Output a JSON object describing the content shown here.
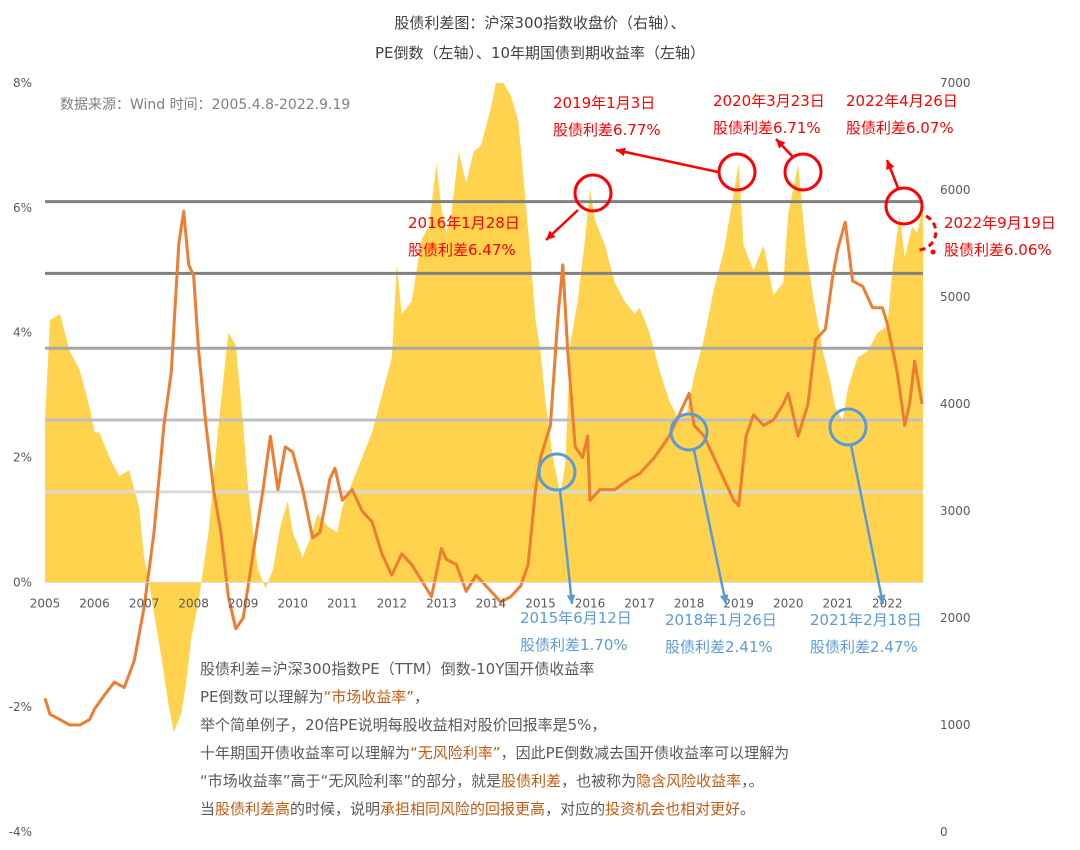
{
  "chart_data": {
    "type": "area+line",
    "title_line1": "股债利差图：沪深300指数收盘价（右轴）、",
    "title_line2": "PE倒数（左轴）、10年期国债到期收益率（左轴）",
    "source_note": "数据来源：Wind 时间：2005.4.8-2022.9.19",
    "y_left": {
      "ticks": [
        "8%",
        "6%",
        "4%",
        "2%",
        "0%",
        "-2%",
        "-4%"
      ],
      "range": [
        -4,
        8
      ]
    },
    "y_right": {
      "ticks": [
        "7000",
        "6000",
        "5000",
        "4000",
        "3000",
        "2000",
        "1000",
        "0"
      ],
      "range": [
        0,
        7000
      ]
    },
    "x_ticks": [
      "2005",
      "2006",
      "2007",
      "2008",
      "2009",
      "2010",
      "2011",
      "2012",
      "2013",
      "2014",
      "2015",
      "2016",
      "2017",
      "2018",
      "2019",
      "2020",
      "2021",
      "2022"
    ],
    "x_range": [
      2005,
      2022.72
    ],
    "reference_lines_pct": [
      6.1,
      4.95,
      3.75,
      2.6,
      1.45
    ],
    "series": [
      {
        "kind": "area",
        "color": "#ffd34d",
        "points": [
          [
            2005.0,
            2.6
          ],
          [
            2005.1,
            4.2
          ],
          [
            2005.3,
            4.3
          ],
          [
            2005.5,
            3.7
          ],
          [
            2005.7,
            3.4
          ],
          [
            2005.9,
            2.8
          ],
          [
            2006.0,
            2.4
          ],
          [
            2006.1,
            2.4
          ],
          [
            2006.3,
            2.0
          ],
          [
            2006.5,
            1.7
          ],
          [
            2006.7,
            1.8
          ],
          [
            2006.9,
            1.2
          ],
          [
            2007.0,
            0.4
          ],
          [
            2007.1,
            0.0
          ],
          [
            2007.2,
            -0.5
          ],
          [
            2007.35,
            -1.2
          ],
          [
            2007.5,
            -2.0
          ],
          [
            2007.6,
            -2.4
          ],
          [
            2007.75,
            -2.1
          ],
          [
            2007.85,
            -1.6
          ],
          [
            2007.95,
            -0.9
          ],
          [
            2008.1,
            -0.3
          ],
          [
            2008.3,
            0.8
          ],
          [
            2008.5,
            2.5
          ],
          [
            2008.7,
            4.0
          ],
          [
            2008.85,
            3.8
          ],
          [
            2009.0,
            2.5
          ],
          [
            2009.1,
            1.5
          ],
          [
            2009.2,
            0.8
          ],
          [
            2009.3,
            0.2
          ],
          [
            2009.45,
            -0.1
          ],
          [
            2009.6,
            0.2
          ],
          [
            2009.75,
            0.9
          ],
          [
            2009.9,
            1.3
          ],
          [
            2010.0,
            0.8
          ],
          [
            2010.2,
            0.4
          ],
          [
            2010.35,
            0.7
          ],
          [
            2010.5,
            1.1
          ],
          [
            2010.7,
            0.9
          ],
          [
            2010.9,
            0.8
          ],
          [
            2011.0,
            1.2
          ],
          [
            2011.2,
            1.6
          ],
          [
            2011.4,
            2.0
          ],
          [
            2011.6,
            2.4
          ],
          [
            2011.8,
            3.0
          ],
          [
            2012.0,
            3.6
          ],
          [
            2012.1,
            5.1
          ],
          [
            2012.2,
            4.3
          ],
          [
            2012.4,
            4.5
          ],
          [
            2012.6,
            5.5
          ],
          [
            2012.75,
            5.7
          ],
          [
            2012.9,
            6.7
          ],
          [
            2013.0,
            6.0
          ],
          [
            2013.1,
            5.6
          ],
          [
            2013.2,
            5.9
          ],
          [
            2013.35,
            6.9
          ],
          [
            2013.5,
            6.4
          ],
          [
            2013.65,
            6.9
          ],
          [
            2013.8,
            7.0
          ],
          [
            2013.9,
            7.3
          ],
          [
            2014.0,
            7.6
          ],
          [
            2014.1,
            8.0
          ],
          [
            2014.25,
            8.0
          ],
          [
            2014.4,
            7.8
          ],
          [
            2014.55,
            7.4
          ],
          [
            2014.7,
            6.1
          ],
          [
            2014.8,
            5.2
          ],
          [
            2014.9,
            4.2
          ],
          [
            2015.0,
            3.7
          ],
          [
            2015.1,
            2.9
          ],
          [
            2015.25,
            2.0
          ],
          [
            2015.4,
            1.4
          ],
          [
            2015.5,
            1.9
          ],
          [
            2015.6,
            3.8
          ],
          [
            2015.75,
            4.5
          ],
          [
            2015.9,
            5.5
          ],
          [
            2016.0,
            6.3
          ],
          [
            2016.1,
            5.8
          ],
          [
            2016.3,
            5.4
          ],
          [
            2016.5,
            4.8
          ],
          [
            2016.7,
            4.5
          ],
          [
            2016.9,
            4.3
          ],
          [
            2017.0,
            4.4
          ],
          [
            2017.2,
            4.0
          ],
          [
            2017.4,
            3.4
          ],
          [
            2017.6,
            2.9
          ],
          [
            2017.8,
            2.6
          ],
          [
            2017.95,
            2.7
          ],
          [
            2018.1,
            3.3
          ],
          [
            2018.3,
            3.9
          ],
          [
            2018.5,
            4.7
          ],
          [
            2018.7,
            5.3
          ],
          [
            2018.85,
            6.0
          ],
          [
            2019.0,
            6.7
          ],
          [
            2019.1,
            5.4
          ],
          [
            2019.3,
            5.0
          ],
          [
            2019.5,
            5.4
          ],
          [
            2019.7,
            4.6
          ],
          [
            2019.9,
            4.8
          ],
          [
            2020.0,
            5.9
          ],
          [
            2020.1,
            6.3
          ],
          [
            2020.2,
            6.7
          ],
          [
            2020.35,
            5.4
          ],
          [
            2020.5,
            4.6
          ],
          [
            2020.7,
            3.7
          ],
          [
            2020.85,
            3.2
          ],
          [
            2020.95,
            2.8
          ],
          [
            2021.1,
            2.6
          ],
          [
            2021.2,
            3.1
          ],
          [
            2021.4,
            3.6
          ],
          [
            2021.6,
            3.7
          ],
          [
            2021.8,
            4.0
          ],
          [
            2022.0,
            4.1
          ],
          [
            2022.1,
            5.0
          ],
          [
            2022.25,
            5.9
          ],
          [
            2022.35,
            5.2
          ],
          [
            2022.5,
            5.7
          ],
          [
            2022.6,
            5.6
          ],
          [
            2022.72,
            6.0
          ]
        ]
      },
      {
        "kind": "line",
        "color": "#ed7d31",
        "points": [
          [
            2005.0,
            1250
          ],
          [
            2005.1,
            1100
          ],
          [
            2005.3,
            1050
          ],
          [
            2005.5,
            1000
          ],
          [
            2005.7,
            1000
          ],
          [
            2005.9,
            1050
          ],
          [
            2006.0,
            1150
          ],
          [
            2006.2,
            1280
          ],
          [
            2006.4,
            1400
          ],
          [
            2006.6,
            1350
          ],
          [
            2006.8,
            1600
          ],
          [
            2007.0,
            2100
          ],
          [
            2007.2,
            2800
          ],
          [
            2007.4,
            3800
          ],
          [
            2007.55,
            4300
          ],
          [
            2007.7,
            5500
          ],
          [
            2007.8,
            5800
          ],
          [
            2007.9,
            5300
          ],
          [
            2008.0,
            5200
          ],
          [
            2008.1,
            4500
          ],
          [
            2008.25,
            3800
          ],
          [
            2008.4,
            3200
          ],
          [
            2008.55,
            2800
          ],
          [
            2008.7,
            2200
          ],
          [
            2008.85,
            1900
          ],
          [
            2009.0,
            2000
          ],
          [
            2009.2,
            2600
          ],
          [
            2009.4,
            3200
          ],
          [
            2009.55,
            3700
          ],
          [
            2009.7,
            3200
          ],
          [
            2009.85,
            3600
          ],
          [
            2010.0,
            3550
          ],
          [
            2010.2,
            3200
          ],
          [
            2010.4,
            2750
          ],
          [
            2010.55,
            2800
          ],
          [
            2010.75,
            3300
          ],
          [
            2010.85,
            3400
          ],
          [
            2011.0,
            3100
          ],
          [
            2011.2,
            3200
          ],
          [
            2011.4,
            3000
          ],
          [
            2011.6,
            2900
          ],
          [
            2011.8,
            2600
          ],
          [
            2012.0,
            2400
          ],
          [
            2012.2,
            2600
          ],
          [
            2012.4,
            2500
          ],
          [
            2012.6,
            2350
          ],
          [
            2012.8,
            2200
          ],
          [
            2013.0,
            2650
          ],
          [
            2013.1,
            2550
          ],
          [
            2013.3,
            2500
          ],
          [
            2013.5,
            2250
          ],
          [
            2013.7,
            2400
          ],
          [
            2013.9,
            2300
          ],
          [
            2014.0,
            2250
          ],
          [
            2014.2,
            2150
          ],
          [
            2014.4,
            2200
          ],
          [
            2014.6,
            2300
          ],
          [
            2014.75,
            2500
          ],
          [
            2014.9,
            3200
          ],
          [
            2015.0,
            3500
          ],
          [
            2015.2,
            3800
          ],
          [
            2015.35,
            4800
          ],
          [
            2015.45,
            5300
          ],
          [
            2015.55,
            4500
          ],
          [
            2015.7,
            3600
          ],
          [
            2015.85,
            3500
          ],
          [
            2015.95,
            3700
          ],
          [
            2016.0,
            3100
          ],
          [
            2016.2,
            3200
          ],
          [
            2016.5,
            3200
          ],
          [
            2016.8,
            3300
          ],
          [
            2017.0,
            3350
          ],
          [
            2017.3,
            3500
          ],
          [
            2017.6,
            3700
          ],
          [
            2017.8,
            3900
          ],
          [
            2018.0,
            4100
          ],
          [
            2018.1,
            3800
          ],
          [
            2018.3,
            3700
          ],
          [
            2018.5,
            3500
          ],
          [
            2018.7,
            3300
          ],
          [
            2018.9,
            3100
          ],
          [
            2019.0,
            3050
          ],
          [
            2019.15,
            3700
          ],
          [
            2019.3,
            3900
          ],
          [
            2019.5,
            3800
          ],
          [
            2019.7,
            3850
          ],
          [
            2019.9,
            4000
          ],
          [
            2020.0,
            4100
          ],
          [
            2020.2,
            3700
          ],
          [
            2020.4,
            4000
          ],
          [
            2020.55,
            4600
          ],
          [
            2020.75,
            4700
          ],
          [
            2020.9,
            5200
          ],
          [
            2021.0,
            5450
          ],
          [
            2021.15,
            5700
          ],
          [
            2021.3,
            5150
          ],
          [
            2021.5,
            5100
          ],
          [
            2021.7,
            4900
          ],
          [
            2021.9,
            4900
          ],
          [
            2022.0,
            4750
          ],
          [
            2022.2,
            4300
          ],
          [
            2022.35,
            3800
          ],
          [
            2022.45,
            4000
          ],
          [
            2022.55,
            4400
          ],
          [
            2022.7,
            4000
          ]
        ]
      }
    ]
  },
  "annotations_red": [
    {
      "date": "2016年1月28日",
      "value": "股债利差6.47%"
    },
    {
      "date": "2019年1月3日",
      "value": "股债利差6.77%"
    },
    {
      "date": "2020年3月23日",
      "value": "股债利差6.71%"
    },
    {
      "date": "2022年4月26日",
      "value": "股债利差6.07%"
    },
    {
      "date": "2022年9月19日",
      "value": "股债利差6.06%"
    }
  ],
  "annotations_blue": [
    {
      "date": "2015年6月12日",
      "value": "股债利差1.70%"
    },
    {
      "date": "2018年1月26日",
      "value": "股债利差2.41%"
    },
    {
      "date": "2021年2月18日",
      "value": "股债利差2.47%"
    }
  ],
  "notes": {
    "l1": "股债利差=沪深300指数PE（TTM）倒数-10Y国开债收益率",
    "l2a": "PE倒数可以理解为",
    "l2b": "“市场收益率”",
    "l2c": "，",
    "l3": "举个简单例子，20倍PE说明每股收益相对股价回报率是5%，",
    "l4a": "十年期国开债收益率可以理解为",
    "l4b": "“无风险利率”",
    "l4c": "，因此PE倒数减去国开债收益率可以理解为",
    "l5a": "“市场收益率”高于“无风险利率”的部分，就是",
    "l5b": "股债利差",
    "l5c": "，也被称为",
    "l5d": "隐含风险收益率",
    "l5e": "，。",
    "l6a": "当",
    "l6b": "股债利差高",
    "l6c": "的时候，说明",
    "l6d": "承担相同风险的回报更高",
    "l6e": "，对应的",
    "l6f": "投资机会也相对更好",
    "l6g": "。"
  }
}
